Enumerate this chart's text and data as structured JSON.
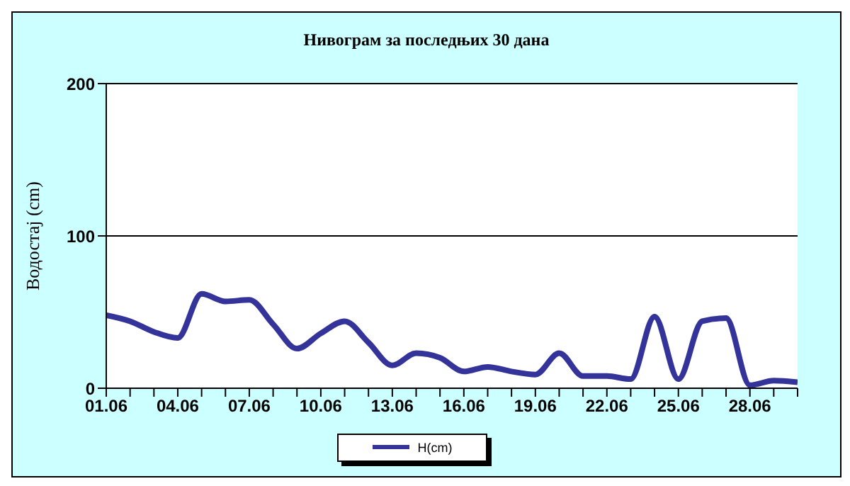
{
  "chart_data": {
    "type": "line",
    "title": "Нивограм за последњих 30 дана",
    "ylabel": "Водостај (cm)",
    "categories": [
      "01.06",
      null,
      null,
      "04.06",
      null,
      null,
      "07.06",
      null,
      null,
      "10.06",
      null,
      null,
      "13.06",
      null,
      null,
      "16.06",
      null,
      null,
      "19.06",
      null,
      null,
      "22.06",
      null,
      null,
      "25.06",
      null,
      null,
      "28.06",
      null,
      null
    ],
    "series": [
      {
        "name": "H(cm)",
        "color": "#333399",
        "values": [
          48,
          44,
          37,
          33,
          62,
          57,
          58,
          42,
          26,
          36,
          44,
          30,
          15,
          23,
          20,
          11,
          14,
          11,
          9,
          23,
          8,
          8,
          6,
          47,
          6,
          44,
          46,
          2,
          5,
          4
        ]
      }
    ],
    "ylim": [
      0,
      200
    ],
    "yticks": [
      0,
      100,
      200
    ],
    "grid": "y",
    "legend": "bottom",
    "marker": "none",
    "line_style": "solid"
  }
}
